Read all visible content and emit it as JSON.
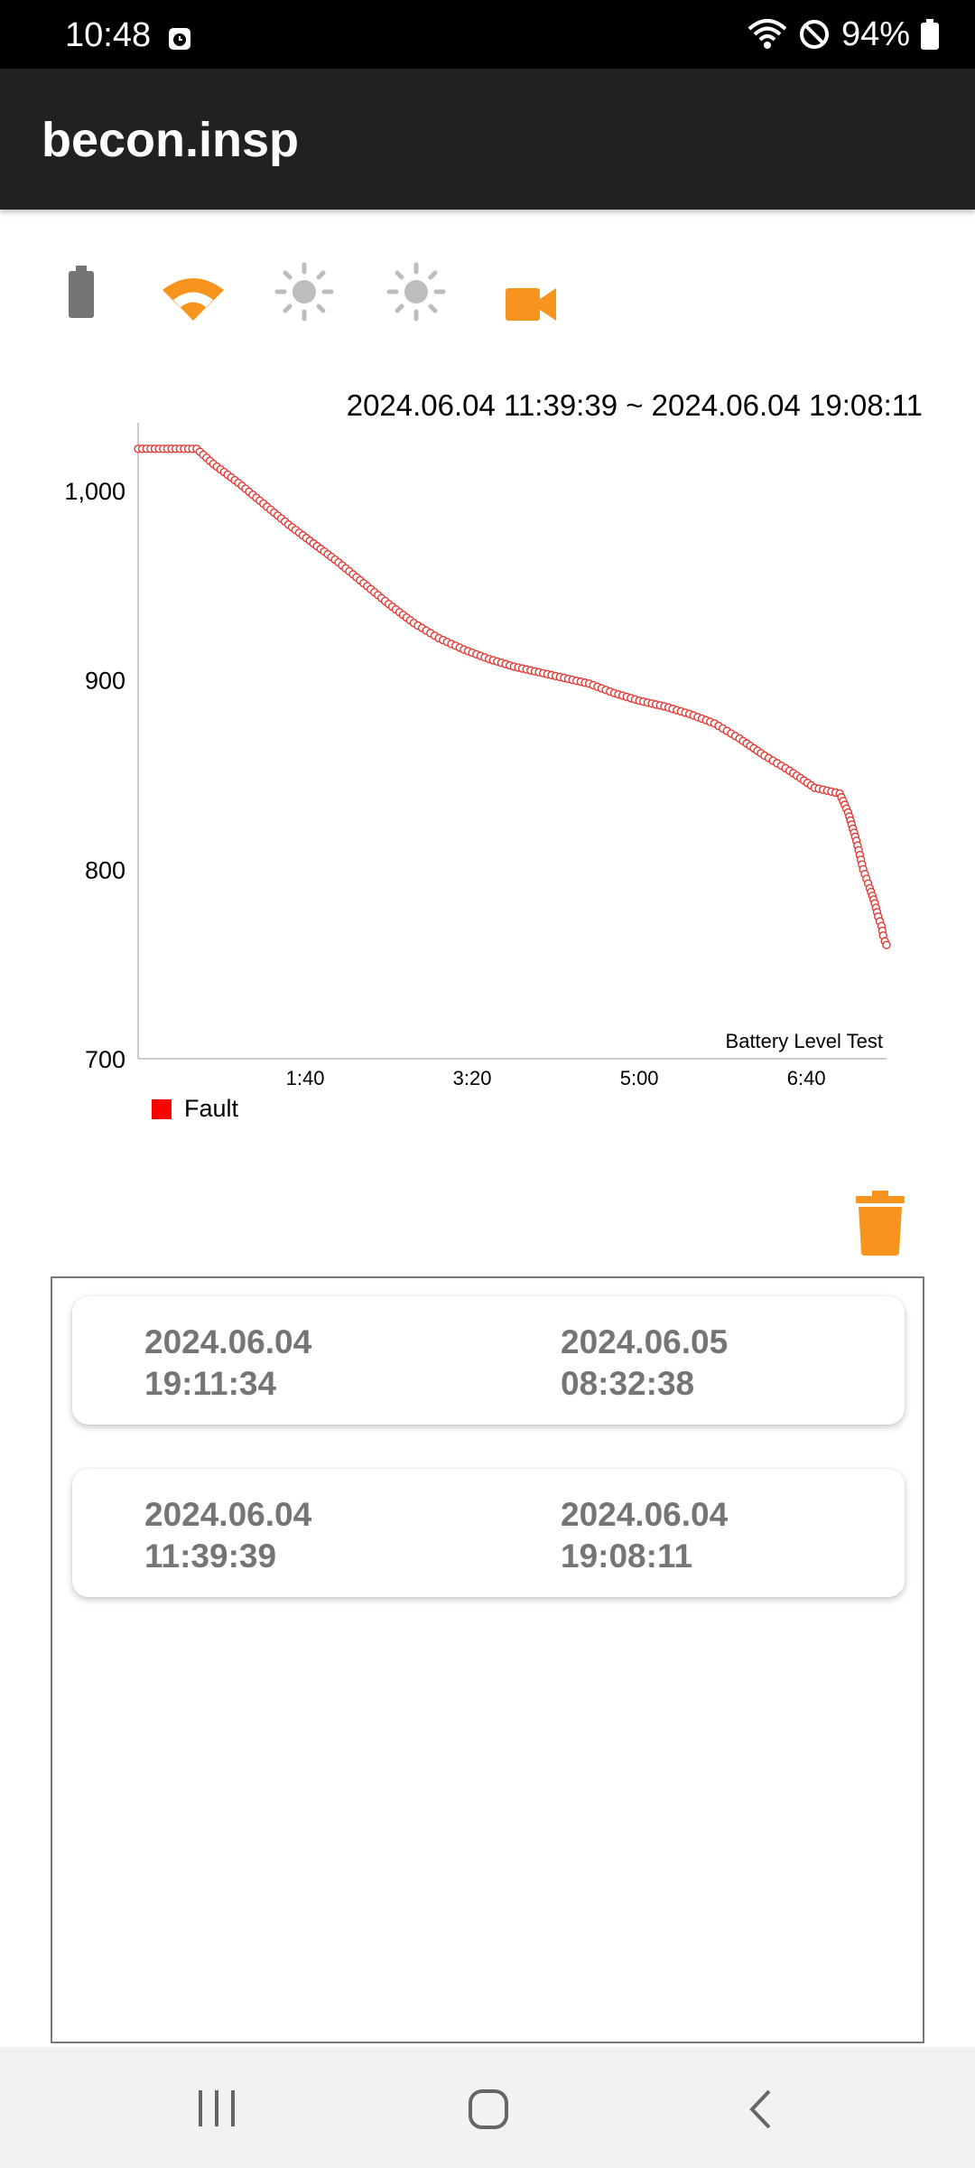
{
  "status": {
    "time": "10:48",
    "battery": "94%",
    "icons": [
      "alarm-icon",
      "wifi-icon",
      "do-not-disturb-icon",
      "battery-icon"
    ]
  },
  "app": {
    "title": "becon.insp"
  },
  "icons": [
    "battery-icon",
    "wifi-icon",
    "brightness-icon",
    "brightness-icon",
    "video-camera-icon"
  ],
  "colors": {
    "accent": "#f7941d",
    "grey": "#757575",
    "series": "#e53935",
    "appbar": "#212121"
  },
  "chart_data": {
    "type": "scatter",
    "range_label": "2024.06.04 11:39:39 ~ 2024.06.04 19:08:11",
    "title": "Battery Level Test",
    "ylim": [
      700,
      1030
    ],
    "yticks": [
      "1,000",
      "900",
      "800",
      "700"
    ],
    "xlim": [
      "0:00",
      "7:28"
    ],
    "xticks": [
      "1:40",
      "3:20",
      "5:00",
      "6:40"
    ],
    "legend": [
      "Fault"
    ],
    "series": [
      {
        "name": "Fault",
        "color": "#e53935",
        "x": [
          "0:00",
          "0:10",
          "0:20",
          "0:30",
          "0:35",
          "0:45",
          "1:00",
          "1:15",
          "1:30",
          "1:45",
          "2:00",
          "2:15",
          "2:30",
          "2:45",
          "3:00",
          "3:15",
          "3:30",
          "3:45",
          "4:00",
          "4:15",
          "4:30",
          "4:45",
          "5:00",
          "5:15",
          "5:30",
          "5:45",
          "6:00",
          "6:15",
          "6:30",
          "6:45",
          "7:00",
          "7:05",
          "7:10",
          "7:14",
          "7:18",
          "7:21",
          "7:23",
          "7:25",
          "7:26",
          "7:27",
          "7:28"
        ],
        "y": [
          1022,
          1022,
          1022,
          1022,
          1022,
          1014,
          1004,
          993,
          982,
          972,
          962,
          951,
          940,
          930,
          922,
          916,
          911,
          907,
          904,
          901,
          898,
          893,
          889,
          886,
          882,
          877,
          869,
          860,
          852,
          843,
          840,
          830,
          815,
          800,
          790,
          782,
          775,
          770,
          765,
          762,
          760
        ]
      }
    ]
  },
  "records": [
    {
      "start_date": "2024.06.04",
      "start_time": "19:11:34",
      "end_date": "2024.06.05",
      "end_time": "08:32:38"
    },
    {
      "start_date": "2024.06.04",
      "start_time": "11:39:39",
      "end_date": "2024.06.04",
      "end_time": "19:08:11"
    }
  ],
  "nav": [
    "recent-apps-icon",
    "home-icon",
    "back-icon"
  ]
}
